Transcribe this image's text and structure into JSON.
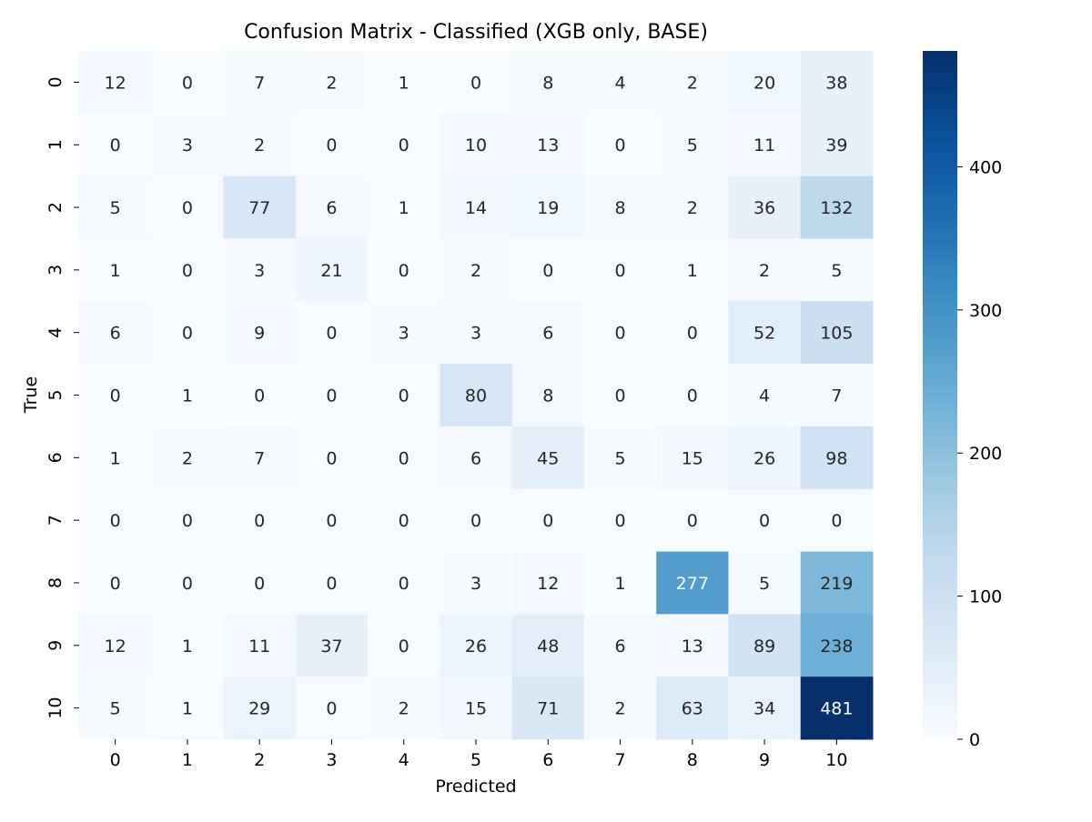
{
  "chart_data": {
    "type": "heatmap",
    "title": "Confusion Matrix - Classified (XGB only, BASE)",
    "xlabel": "Predicted",
    "ylabel": "True",
    "x_categories": [
      "0",
      "1",
      "2",
      "3",
      "4",
      "5",
      "6",
      "7",
      "8",
      "9",
      "10"
    ],
    "y_categories": [
      "0",
      "1",
      "2",
      "3",
      "4",
      "5",
      "6",
      "7",
      "8",
      "9",
      "10"
    ],
    "values": [
      [
        12,
        0,
        7,
        2,
        1,
        0,
        8,
        4,
        2,
        20,
        38
      ],
      [
        0,
        3,
        2,
        0,
        0,
        10,
        13,
        0,
        5,
        11,
        39
      ],
      [
        5,
        0,
        77,
        6,
        1,
        14,
        19,
        8,
        2,
        36,
        132
      ],
      [
        1,
        0,
        3,
        21,
        0,
        2,
        0,
        0,
        1,
        2,
        5
      ],
      [
        6,
        0,
        9,
        0,
        3,
        3,
        6,
        0,
        0,
        52,
        105
      ],
      [
        0,
        1,
        0,
        0,
        0,
        80,
        8,
        0,
        0,
        4,
        7
      ],
      [
        1,
        2,
        7,
        0,
        0,
        6,
        45,
        5,
        15,
        26,
        98
      ],
      [
        0,
        0,
        0,
        0,
        0,
        0,
        0,
        0,
        0,
        0,
        0
      ],
      [
        0,
        0,
        0,
        0,
        0,
        3,
        12,
        1,
        277,
        5,
        219
      ],
      [
        12,
        1,
        11,
        37,
        0,
        26,
        48,
        6,
        13,
        89,
        238
      ],
      [
        5,
        1,
        29,
        0,
        2,
        15,
        71,
        2,
        63,
        34,
        481
      ]
    ],
    "colormap": "Blues",
    "colorbar": {
      "range": [
        0,
        481
      ],
      "ticks": [
        0,
        100,
        200,
        300,
        400
      ]
    },
    "grid": false,
    "legend": "colorbar-right"
  }
}
